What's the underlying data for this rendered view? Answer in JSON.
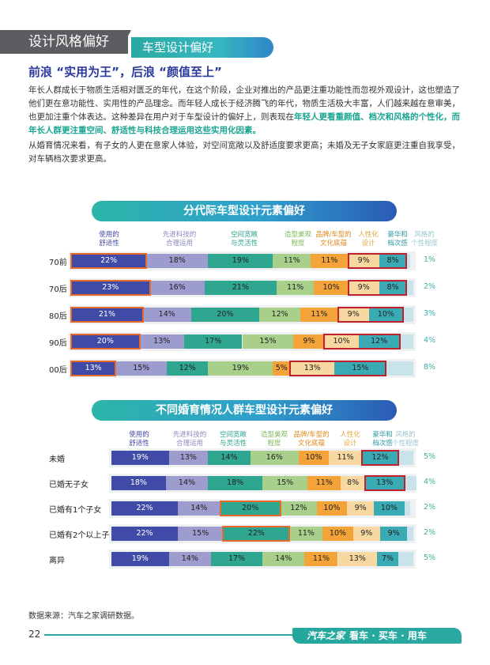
{
  "header": {
    "section_title": "设计风格偏好",
    "subsection_title": "车型设计偏好"
  },
  "headline": "前浪 “实用为王”，后浪 “颜值至上”",
  "paragraph1": {
    "text": "年长人群成长于物质生活相对匮乏的年代，在这个阶段，企业对推出的产品更注重功能性而忽视外观设计，这也塑造了他们更在意功能性、实用性的产品理念。而年轻人成长于经济腾飞的年代，物质生活极大丰富，人们越来越在意审美，也更加注重个体表达。这种差异在用户对于车型设计的偏好上，则表现在",
    "highlight": "年轻人更看重颜值、档次和风格的个性化，而年长人群更注重空间、舒适性与科技合理运用这些实用化因素。"
  },
  "paragraph2": "从婚育情况来看，有子女的人更在意家人体验，对空间宽敞以及舒适度要求更高；未婚及无子女家庭更注重自我享受，对车辆档次要求更高。",
  "colors": {
    "comfort": "#3f4ba7",
    "tech": "#9c9ccf",
    "space": "#2fa68f",
    "looks": "#a8d08a",
    "brand": "#f3a338",
    "personal": "#f7d8a0",
    "luxury": "#3aaab5",
    "style": "#c8e4ea",
    "box_orange": "#e86a2b",
    "box_red": "#c0202c"
  },
  "chart_data": [
    {
      "type": "bar",
      "orientation": "horizontal-stacked",
      "title": "分代际车型设计元素偏好",
      "legend": [
        "使用的舒适性",
        "先进科技的合理运用",
        "空间宽敞与灵活性",
        "造型美观程度",
        "品牌/车型的文化底蕴",
        "人性化设计",
        "豪华和档次感",
        "风格的个性程度"
      ],
      "legend_lines": [
        [
          "使用的",
          "舒适性"
        ],
        [
          "先进科技的",
          "合理运用"
        ],
        [
          "空间宽敞",
          "与灵活性"
        ],
        [
          "造型美观",
          "程度"
        ],
        [
          "品牌/车型的",
          "文化底蕴"
        ],
        [
          "人性化",
          "设计"
        ],
        [
          "豪华和",
          "档次感"
        ],
        [
          "风格的",
          "个性程度"
        ]
      ],
      "categories": [
        "70前",
        "70后",
        "80后",
        "90后",
        "00后"
      ],
      "series": [
        {
          "name": "使用的舒适性",
          "values": [
            22,
            23,
            21,
            20,
            13
          ]
        },
        {
          "name": "先进科技的合理运用",
          "values": [
            18,
            16,
            14,
            13,
            15
          ]
        },
        {
          "name": "空间宽敞与灵活性",
          "values": [
            19,
            21,
            20,
            17,
            12
          ]
        },
        {
          "name": "造型美观程度",
          "values": [
            11,
            11,
            12,
            15,
            19
          ]
        },
        {
          "name": "品牌/车型的文化底蕴",
          "values": [
            11,
            10,
            11,
            9,
            5
          ]
        },
        {
          "name": "人性化设计",
          "values": [
            9,
            9,
            9,
            10,
            13
          ]
        },
        {
          "name": "豪华和档次感",
          "values": [
            8,
            8,
            10,
            12,
            15
          ]
        },
        {
          "name": "风格的个性程度",
          "values": [
            1,
            2,
            3,
            4,
            8
          ]
        }
      ],
      "unit": "%",
      "highlights": {
        "orange_series": 0,
        "red_series": [
          5,
          6
        ]
      }
    },
    {
      "type": "bar",
      "orientation": "horizontal-stacked",
      "title": "不同婚育情况人群车型设计元素偏好",
      "legend": [
        "使用的舒适性",
        "先进科技的合理运用",
        "空间宽敞与灵活性",
        "造型美观程度",
        "品牌/车型的文化底蕴",
        "人性化设计",
        "豪华和档次感",
        "风格的个性程度"
      ],
      "legend_lines": [
        [
          "使用的",
          "舒适性"
        ],
        [
          "先进科技的",
          "合理运用"
        ],
        [
          "空间宽敞",
          "与灵活性"
        ],
        [
          "造型美观",
          "程度"
        ],
        [
          "品牌/车型的",
          "文化底蕴"
        ],
        [
          "人性化",
          "设计"
        ],
        [
          "豪华和",
          "档次感"
        ],
        [
          "风格的",
          "个性程度"
        ]
      ],
      "categories": [
        "未婚",
        "已婚无子女",
        "已婚有1个子女",
        "已婚有2个以上子女",
        "离异"
      ],
      "series": [
        {
          "name": "使用的舒适性",
          "values": [
            19,
            18,
            22,
            22,
            19
          ]
        },
        {
          "name": "先进科技的合理运用",
          "values": [
            13,
            14,
            14,
            15,
            14
          ]
        },
        {
          "name": "空间宽敞与灵活性",
          "values": [
            14,
            18,
            20,
            22,
            17
          ]
        },
        {
          "name": "造型美观程度",
          "values": [
            16,
            15,
            12,
            11,
            14
          ]
        },
        {
          "name": "品牌/车型的文化底蕴",
          "values": [
            10,
            11,
            10,
            10,
            11
          ]
        },
        {
          "name": "人性化设计",
          "values": [
            11,
            8,
            9,
            9,
            13
          ]
        },
        {
          "name": "豪华和档次感",
          "values": [
            12,
            13,
            10,
            9,
            7
          ]
        },
        {
          "name": "风格的个性程度",
          "values": [
            5,
            4,
            2,
            2,
            5
          ]
        }
      ],
      "unit": "%",
      "highlights": {
        "orange_cells": [
          [
            2,
            2
          ],
          [
            3,
            2
          ]
        ],
        "red_cells": [
          [
            0,
            6
          ],
          [
            1,
            6
          ]
        ]
      }
    }
  ],
  "source": "数据来源：汽车之家调研数据。",
  "page_number": "22",
  "footer": {
    "brand": "汽车之家",
    "slogan": "看车 · 买车 · 用车"
  }
}
